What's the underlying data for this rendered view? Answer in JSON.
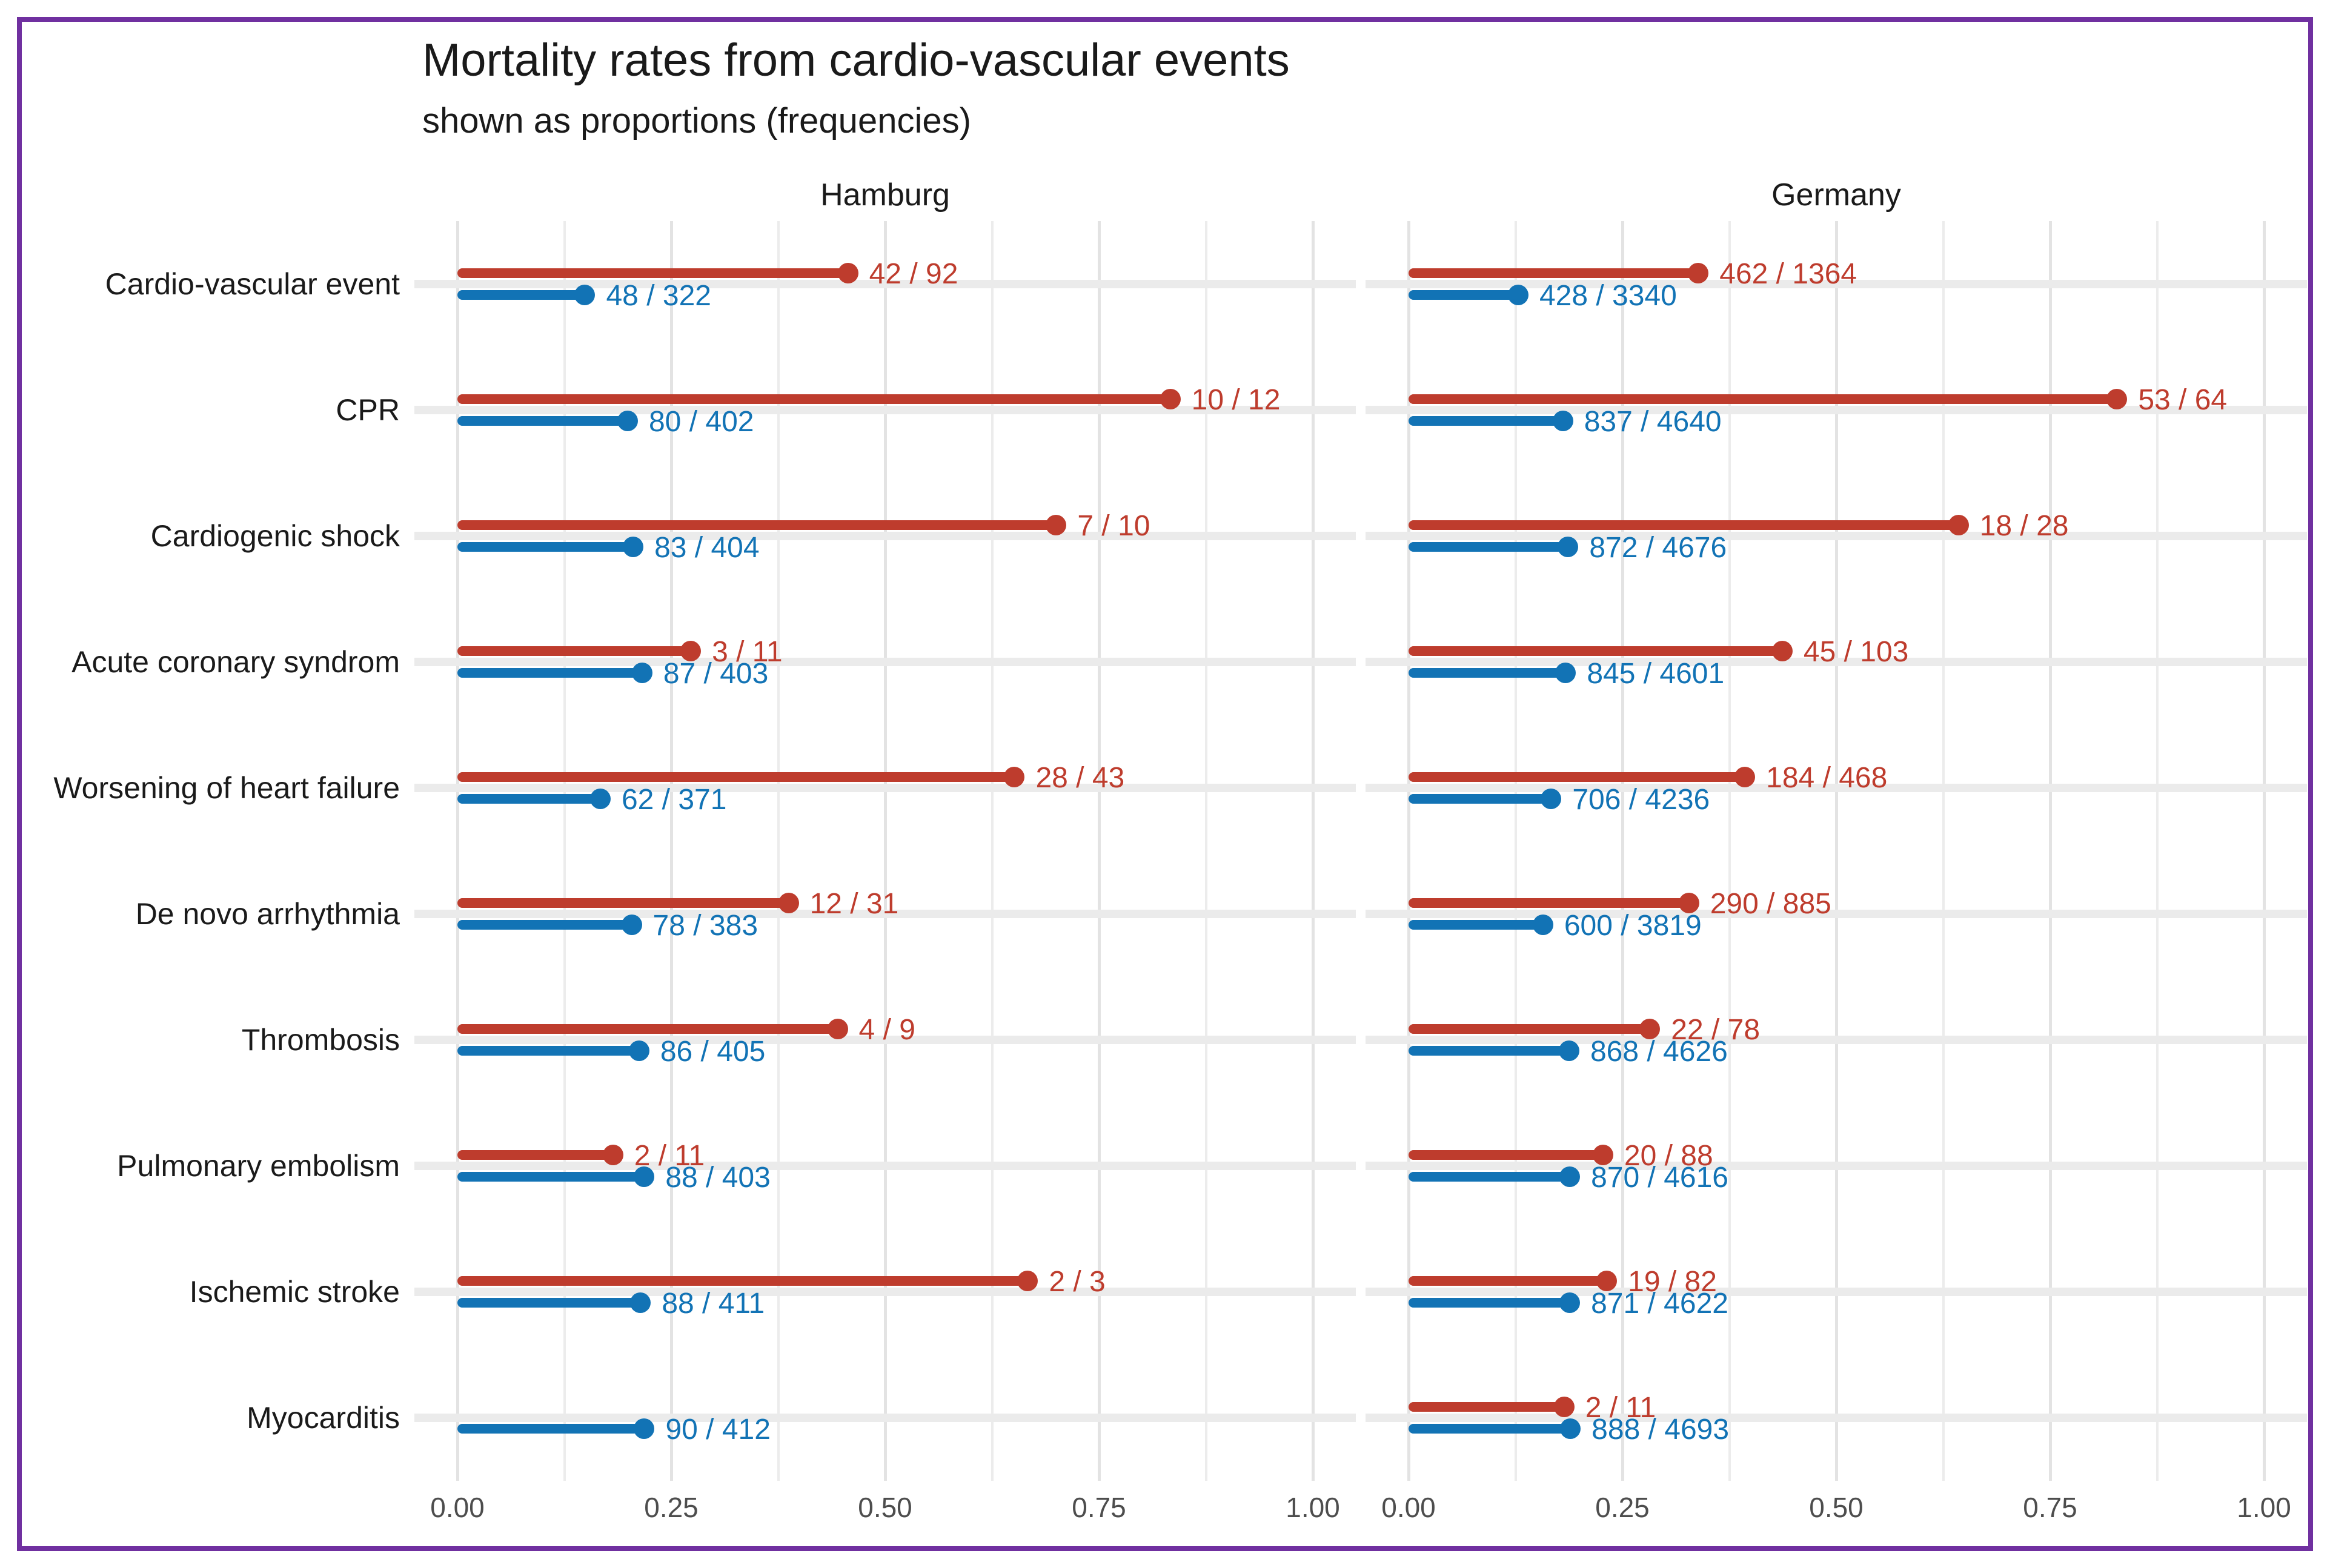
{
  "title": "Mortality rates from cardio-vascular events",
  "subtitle": "shown as proportions (frequencies)",
  "facets": [
    "Hamburg",
    "Germany"
  ],
  "x_axis": {
    "tick_labels": [
      "0.00",
      "0.25",
      "0.50",
      "0.75",
      "1.00"
    ],
    "tick_values": [
      0,
      0.25,
      0.5,
      0.75,
      1.0
    ],
    "minor_values": [
      0.125,
      0.375,
      0.625,
      0.875
    ]
  },
  "colors": {
    "red": "#be3c2d",
    "blue": "#1273b5",
    "grid_major": "#e3e3e3",
    "grid_minor": "#ececec",
    "row_band": "#ebebeb",
    "border": "#7030a0",
    "text": "#1a1a1a",
    "tick_text": "#4d4d4d"
  },
  "chart_data": {
    "type": "scatter",
    "variant": "faceted horizontal lollipop / dumbbell plot, two series per category",
    "title": "Mortality rates from cardio-vascular events",
    "subtitle": "shown as proportions (frequencies)",
    "xlabel": "",
    "ylabel": "",
    "xlim": [
      0,
      1.0
    ],
    "x_expansion": 0.05,
    "grid": "vertical major + minor gridlines, light horizontal band at each category",
    "legend": "none (series distinguished by color: red = upper stem, blue = lower stem)",
    "facets": [
      "Hamburg",
      "Germany"
    ],
    "categories": [
      "Cardio-vascular event",
      "CPR",
      "Cardiogenic shock",
      "Acute coronary syndrom",
      "Worsening of heart failure",
      "De novo arrhythmia",
      "Thrombosis",
      "Pulmonary embolism",
      "Ischemic stroke",
      "Myocarditis"
    ],
    "rows": [
      {
        "category": "Cardio-vascular event",
        "Hamburg": {
          "red": {
            "count": 42,
            "total": 92,
            "label": "42 / 92",
            "proportion": 0.457
          },
          "blue": {
            "count": 48,
            "total": 322,
            "label": "48 / 322",
            "proportion": 0.149
          }
        },
        "Germany": {
          "red": {
            "count": 462,
            "total": 1364,
            "label": "462 / 1364",
            "proportion": 0.339
          },
          "blue": {
            "count": 428,
            "total": 3340,
            "label": "428 / 3340",
            "proportion": 0.128
          }
        }
      },
      {
        "category": "CPR",
        "Hamburg": {
          "red": {
            "count": 10,
            "total": 12,
            "label": "10 / 12",
            "proportion": 0.833
          },
          "blue": {
            "count": 80,
            "total": 402,
            "label": "80 / 402",
            "proportion": 0.199
          }
        },
        "Germany": {
          "red": {
            "count": 53,
            "total": 64,
            "label": "53 / 64",
            "proportion": 0.828
          },
          "blue": {
            "count": 837,
            "total": 4640,
            "label": "837 / 4640",
            "proportion": 0.18
          }
        }
      },
      {
        "category": "Cardiogenic shock",
        "Hamburg": {
          "red": {
            "count": 7,
            "total": 10,
            "label": "7 / 10",
            "proportion": 0.7
          },
          "blue": {
            "count": 83,
            "total": 404,
            "label": "83 / 404",
            "proportion": 0.205
          }
        },
        "Germany": {
          "red": {
            "count": 18,
            "total": 28,
            "label": "18 / 28",
            "proportion": 0.643
          },
          "blue": {
            "count": 872,
            "total": 4676,
            "label": "872 / 4676",
            "proportion": 0.186
          }
        }
      },
      {
        "category": "Acute coronary syndrom",
        "Hamburg": {
          "red": {
            "count": 3,
            "total": 11,
            "label": "3 / 11",
            "proportion": 0.273
          },
          "blue": {
            "count": 87,
            "total": 403,
            "label": "87 / 403",
            "proportion": 0.216
          }
        },
        "Germany": {
          "red": {
            "count": 45,
            "total": 103,
            "label": "45 / 103",
            "proportion": 0.437
          },
          "blue": {
            "count": 845,
            "total": 4601,
            "label": "845 / 4601",
            "proportion": 0.184
          }
        }
      },
      {
        "category": "Worsening of heart failure",
        "Hamburg": {
          "red": {
            "count": 28,
            "total": 43,
            "label": "28 / 43",
            "proportion": 0.651
          },
          "blue": {
            "count": 62,
            "total": 371,
            "label": "62 / 371",
            "proportion": 0.167
          }
        },
        "Germany": {
          "red": {
            "count": 184,
            "total": 468,
            "label": "184 / 468",
            "proportion": 0.393
          },
          "blue": {
            "count": 706,
            "total": 4236,
            "label": "706 / 4236",
            "proportion": 0.167
          }
        }
      },
      {
        "category": "De novo arrhythmia",
        "Hamburg": {
          "red": {
            "count": 12,
            "total": 31,
            "label": "12 / 31",
            "proportion": 0.387
          },
          "blue": {
            "count": 78,
            "total": 383,
            "label": "78 / 383",
            "proportion": 0.204
          }
        },
        "Germany": {
          "red": {
            "count": 290,
            "total": 885,
            "label": "290 / 885",
            "proportion": 0.328
          },
          "blue": {
            "count": 600,
            "total": 3819,
            "label": "600 / 3819",
            "proportion": 0.157
          }
        }
      },
      {
        "category": "Thrombosis",
        "Hamburg": {
          "red": {
            "count": 4,
            "total": 9,
            "label": "4 / 9",
            "proportion": 0.444
          },
          "blue": {
            "count": 86,
            "total": 405,
            "label": "86 / 405",
            "proportion": 0.212
          }
        },
        "Germany": {
          "red": {
            "count": 22,
            "total": 78,
            "label": "22 / 78",
            "proportion": 0.282
          },
          "blue": {
            "count": 868,
            "total": 4626,
            "label": "868 / 4626",
            "proportion": 0.188
          }
        }
      },
      {
        "category": "Pulmonary embolism",
        "Hamburg": {
          "red": {
            "count": 2,
            "total": 11,
            "label": "2 / 11",
            "proportion": 0.182
          },
          "blue": {
            "count": 88,
            "total": 403,
            "label": "88 / 403",
            "proportion": 0.218
          }
        },
        "Germany": {
          "red": {
            "count": 20,
            "total": 88,
            "label": "20 / 88",
            "proportion": 0.227
          },
          "blue": {
            "count": 870,
            "total": 4616,
            "label": "870 / 4616",
            "proportion": 0.188
          }
        }
      },
      {
        "category": "Ischemic stroke",
        "Hamburg": {
          "red": {
            "count": 2,
            "total": 3,
            "label": "2 / 3",
            "proportion": 0.667
          },
          "blue": {
            "count": 88,
            "total": 411,
            "label": "88 / 411",
            "proportion": 0.214
          }
        },
        "Germany": {
          "red": {
            "count": 19,
            "total": 82,
            "label": "19 / 82",
            "proportion": 0.232
          },
          "blue": {
            "count": 871,
            "total": 4622,
            "label": "871 / 4622",
            "proportion": 0.188
          }
        }
      },
      {
        "category": "Myocarditis",
        "Hamburg": {
          "red": null,
          "blue": {
            "count": 90,
            "total": 412,
            "label": "90 / 412",
            "proportion": 0.218
          }
        },
        "Germany": {
          "red": {
            "count": 2,
            "total": 11,
            "label": "2 / 11",
            "proportion": 0.182
          },
          "blue": {
            "count": 888,
            "total": 4693,
            "label": "888 / 4693",
            "proportion": 0.189
          }
        }
      }
    ]
  }
}
